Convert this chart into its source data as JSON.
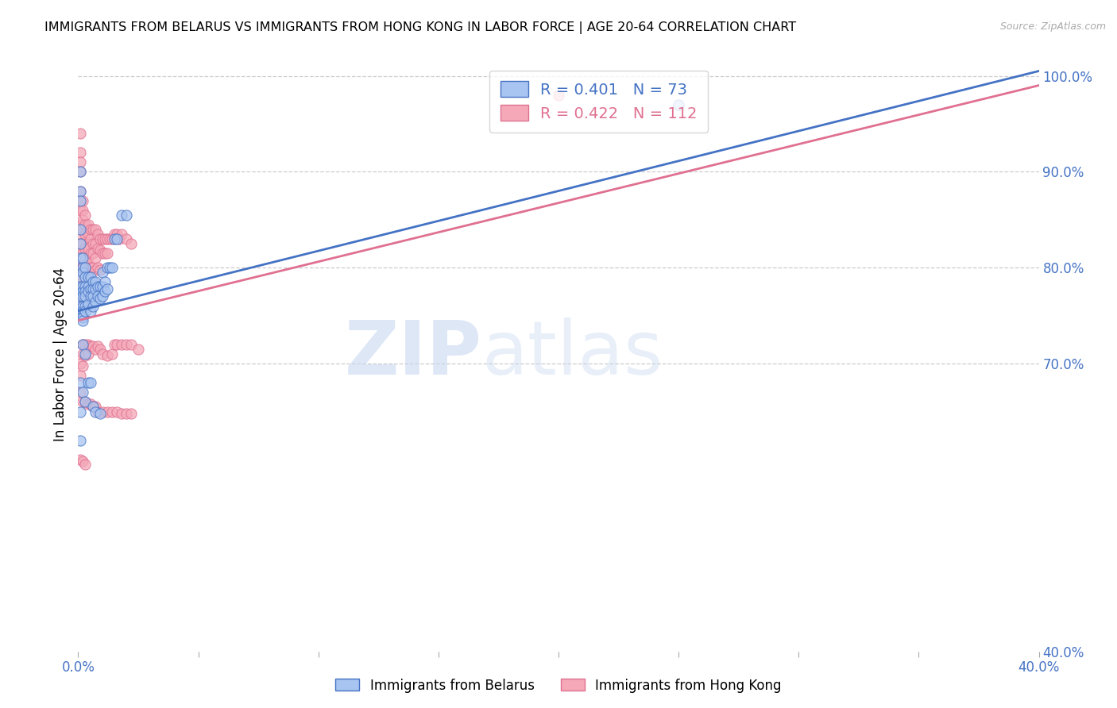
{
  "title": "IMMIGRANTS FROM BELARUS VS IMMIGRANTS FROM HONG KONG IN LABOR FORCE | AGE 20-64 CORRELATION CHART",
  "source": "Source: ZipAtlas.com",
  "ylabel": "In Labor Force | Age 20-64",
  "xlim": [
    0.0,
    0.4
  ],
  "ylim": [
    0.4,
    1.02
  ],
  "color_belarus": "#a8c4f0",
  "color_hongkong": "#f4a8b8",
  "color_line_belarus": "#4472c4",
  "color_line_hongkong": "#e07090",
  "watermark_zip": "ZIP",
  "watermark_atlas": "atlas",
  "R1": "0.401",
  "N1": "73",
  "R2": "0.422",
  "N2": "112",
  "belarus_x": [
    0.001,
    0.001,
    0.001,
    0.001,
    0.001,
    0.001,
    0.001,
    0.001,
    0.001,
    0.001,
    0.002,
    0.002,
    0.002,
    0.002,
    0.002,
    0.002,
    0.002,
    0.002,
    0.002,
    0.002,
    0.002,
    0.003,
    0.003,
    0.003,
    0.003,
    0.003,
    0.003,
    0.003,
    0.004,
    0.004,
    0.004,
    0.004,
    0.005,
    0.005,
    0.005,
    0.005,
    0.006,
    0.006,
    0.006,
    0.006,
    0.007,
    0.007,
    0.007,
    0.008,
    0.008,
    0.009,
    0.009,
    0.01,
    0.01,
    0.01,
    0.011,
    0.011,
    0.012,
    0.012,
    0.013,
    0.014,
    0.015,
    0.016,
    0.018,
    0.02,
    0.001,
    0.001,
    0.001,
    0.002,
    0.002,
    0.003,
    0.003,
    0.004,
    0.005,
    0.006,
    0.007,
    0.009,
    0.25
  ],
  "belarus_y": [
    0.9,
    0.88,
    0.87,
    0.84,
    0.825,
    0.81,
    0.79,
    0.78,
    0.77,
    0.76,
    0.81,
    0.8,
    0.795,
    0.78,
    0.775,
    0.77,
    0.76,
    0.755,
    0.75,
    0.748,
    0.745,
    0.8,
    0.79,
    0.78,
    0.775,
    0.77,
    0.76,
    0.755,
    0.79,
    0.78,
    0.775,
    0.762,
    0.79,
    0.778,
    0.77,
    0.755,
    0.785,
    0.778,
    0.77,
    0.76,
    0.785,
    0.778,
    0.765,
    0.78,
    0.77,
    0.78,
    0.768,
    0.795,
    0.78,
    0.77,
    0.785,
    0.775,
    0.8,
    0.778,
    0.8,
    0.8,
    0.83,
    0.83,
    0.855,
    0.855,
    0.68,
    0.65,
    0.62,
    0.72,
    0.67,
    0.71,
    0.66,
    0.68,
    0.68,
    0.655,
    0.65,
    0.648,
    0.97
  ],
  "hongkong_x": [
    0.001,
    0.001,
    0.001,
    0.001,
    0.001,
    0.001,
    0.001,
    0.001,
    0.001,
    0.001,
    0.001,
    0.001,
    0.001,
    0.002,
    0.002,
    0.002,
    0.002,
    0.002,
    0.002,
    0.002,
    0.002,
    0.002,
    0.002,
    0.002,
    0.002,
    0.003,
    0.003,
    0.003,
    0.003,
    0.003,
    0.003,
    0.003,
    0.003,
    0.004,
    0.004,
    0.004,
    0.004,
    0.004,
    0.005,
    0.005,
    0.005,
    0.005,
    0.006,
    0.006,
    0.006,
    0.006,
    0.007,
    0.007,
    0.007,
    0.007,
    0.008,
    0.008,
    0.008,
    0.009,
    0.009,
    0.009,
    0.01,
    0.01,
    0.011,
    0.011,
    0.012,
    0.012,
    0.013,
    0.014,
    0.015,
    0.016,
    0.017,
    0.018,
    0.02,
    0.022,
    0.001,
    0.001,
    0.001,
    0.002,
    0.002,
    0.002,
    0.003,
    0.003,
    0.004,
    0.004,
    0.005,
    0.006,
    0.007,
    0.008,
    0.009,
    0.01,
    0.012,
    0.014,
    0.015,
    0.016,
    0.018,
    0.02,
    0.022,
    0.025,
    0.002,
    0.003,
    0.004,
    0.005,
    0.006,
    0.007,
    0.008,
    0.01,
    0.012,
    0.014,
    0.016,
    0.018,
    0.02,
    0.022,
    0.2,
    0.001,
    0.002,
    0.003
  ],
  "hongkong_y": [
    0.94,
    0.92,
    0.91,
    0.9,
    0.88,
    0.87,
    0.86,
    0.845,
    0.835,
    0.825,
    0.815,
    0.8,
    0.79,
    0.87,
    0.86,
    0.85,
    0.84,
    0.825,
    0.815,
    0.805,
    0.8,
    0.79,
    0.78,
    0.77,
    0.76,
    0.855,
    0.845,
    0.835,
    0.82,
    0.81,
    0.8,
    0.79,
    0.78,
    0.845,
    0.835,
    0.82,
    0.81,
    0.795,
    0.84,
    0.83,
    0.815,
    0.8,
    0.84,
    0.825,
    0.815,
    0.8,
    0.84,
    0.825,
    0.81,
    0.798,
    0.835,
    0.82,
    0.8,
    0.83,
    0.818,
    0.798,
    0.83,
    0.815,
    0.83,
    0.815,
    0.83,
    0.815,
    0.83,
    0.83,
    0.835,
    0.835,
    0.83,
    0.835,
    0.83,
    0.825,
    0.7,
    0.688,
    0.67,
    0.72,
    0.71,
    0.698,
    0.72,
    0.708,
    0.72,
    0.71,
    0.718,
    0.718,
    0.715,
    0.718,
    0.715,
    0.71,
    0.708,
    0.71,
    0.72,
    0.72,
    0.72,
    0.72,
    0.72,
    0.715,
    0.66,
    0.66,
    0.658,
    0.658,
    0.655,
    0.655,
    0.65,
    0.65,
    0.65,
    0.65,
    0.65,
    0.648,
    0.648,
    0.648,
    0.98,
    0.6,
    0.598,
    0.595
  ],
  "blue_line_x": [
    0.0,
    0.4
  ],
  "blue_line_y": [
    0.755,
    1.005
  ],
  "pink_line_x": [
    0.0,
    0.4
  ],
  "pink_line_y": [
    0.745,
    0.99
  ]
}
